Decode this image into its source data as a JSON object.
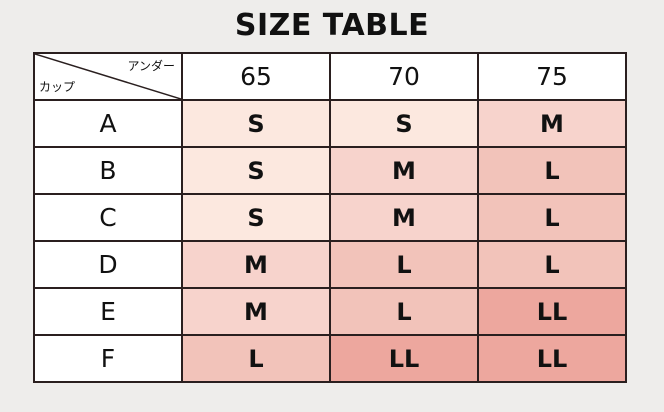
{
  "title": "SIZE TABLE",
  "corner": {
    "top_right": "アンダー",
    "bottom_left": "カップ"
  },
  "columns": [
    "65",
    "70",
    "75"
  ],
  "rows": [
    {
      "cup": "A",
      "sizes": [
        "S",
        "S",
        "M"
      ]
    },
    {
      "cup": "B",
      "sizes": [
        "S",
        "M",
        "L"
      ]
    },
    {
      "cup": "C",
      "sizes": [
        "S",
        "M",
        "L"
      ]
    },
    {
      "cup": "D",
      "sizes": [
        "M",
        "L",
        "L"
      ]
    },
    {
      "cup": "E",
      "sizes": [
        "M",
        "L",
        "LL"
      ]
    },
    {
      "cup": "F",
      "sizes": [
        "L",
        "LL",
        "LL"
      ]
    }
  ],
  "colors": {
    "S": "#fce8df",
    "M": "#f7d3cc",
    "L": "#f2c3ba",
    "LL": "#eda79e"
  }
}
